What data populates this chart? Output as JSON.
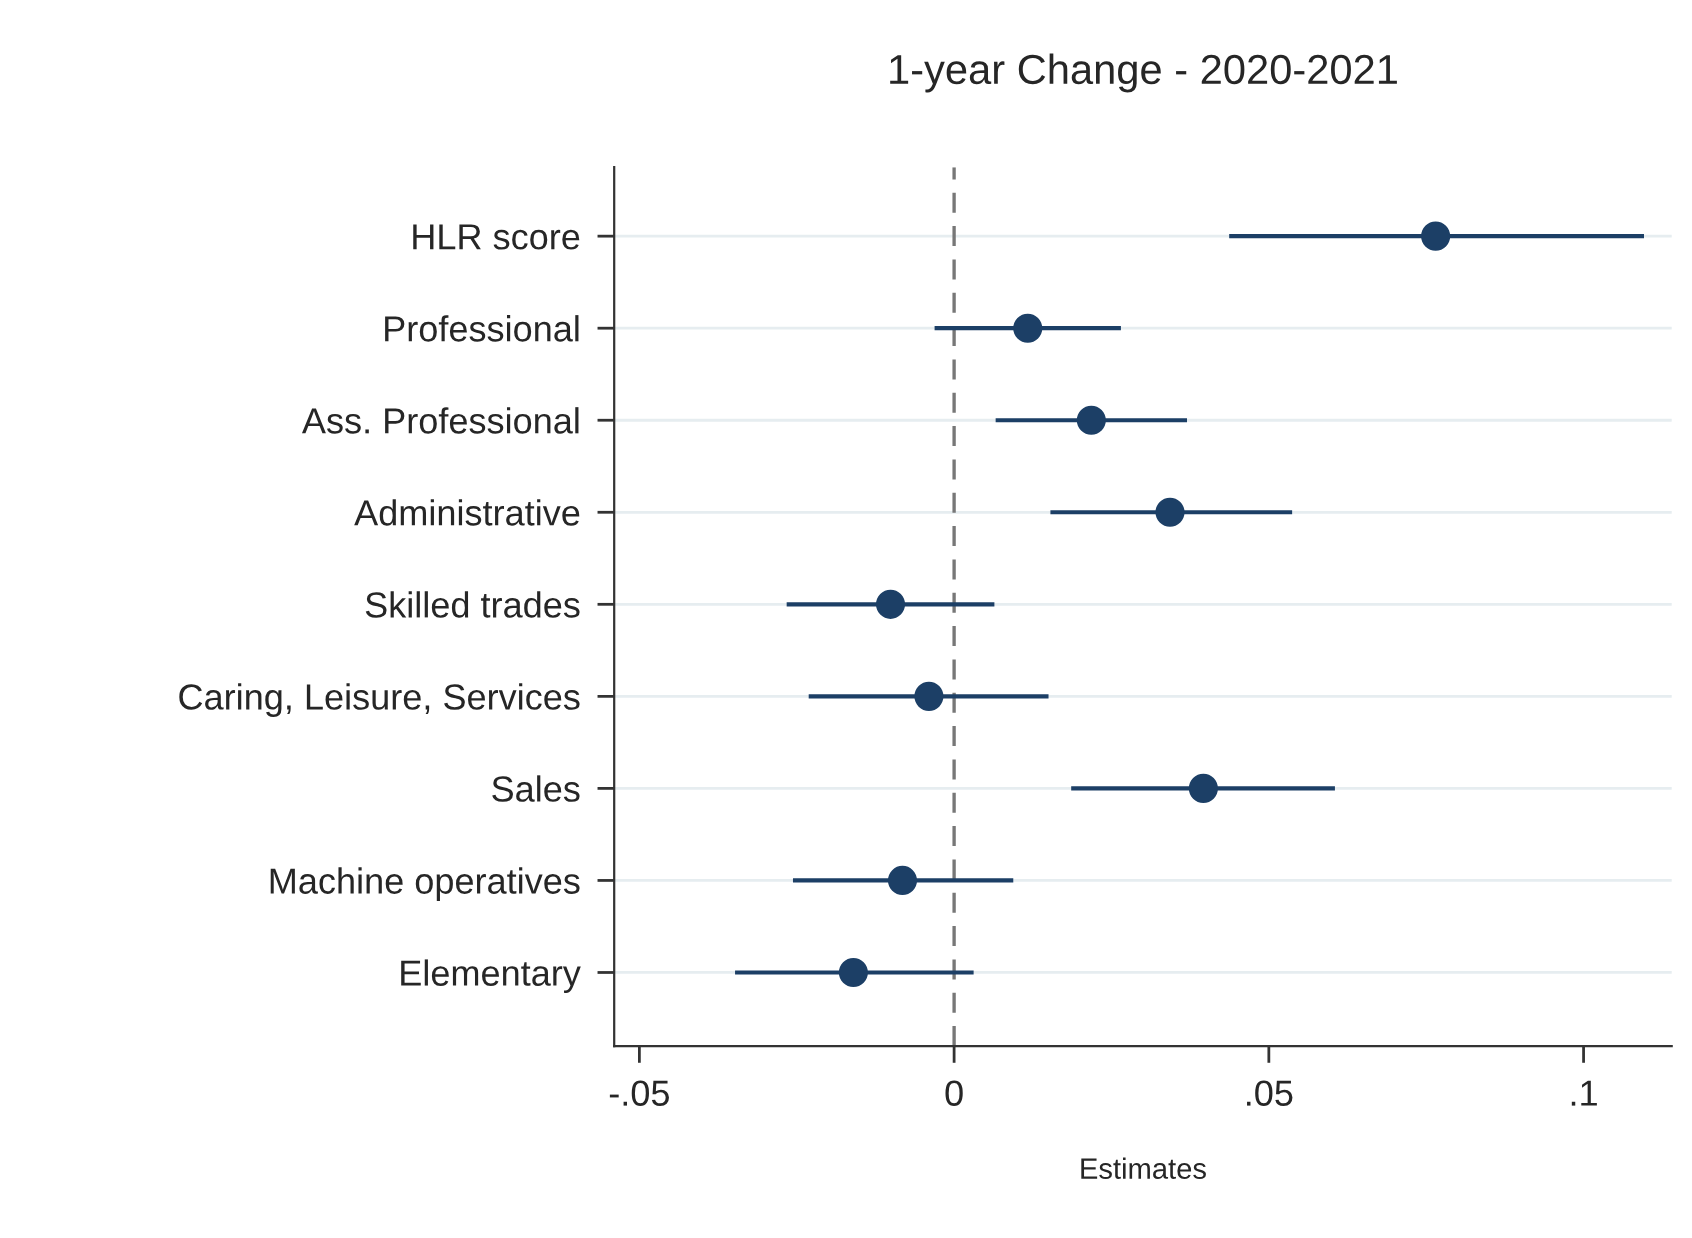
{
  "chart_data": {
    "type": "scatter",
    "orientation": "horizontal",
    "title": "1-year Change - 2020-2021",
    "xlabel": "Estimates",
    "categories": [
      "HLR score",
      "Professional",
      "Ass. Professional",
      "Administrative",
      "Skilled trades",
      "Caring, Leisure, Services",
      "Sales",
      "Machine operatives",
      "Elementary"
    ],
    "values": [
      0.0765,
      0.0117,
      0.0218,
      0.0343,
      -0.0101,
      -0.004,
      0.0396,
      -0.0082,
      -0.016
    ],
    "errors": [
      [
        0.0437,
        0.1096
      ],
      [
        -0.0031,
        0.0265
      ],
      [
        0.0066,
        0.037
      ],
      [
        0.0153,
        0.0537
      ],
      [
        -0.0266,
        0.0064
      ],
      [
        -0.0231,
        0.015
      ],
      [
        0.0186,
        0.0605
      ],
      [
        -0.0256,
        0.0094
      ],
      [
        -0.0348,
        0.0031
      ]
    ],
    "color": "#1c3f66",
    "marker": "circle",
    "xlim": [
      -0.054,
      0.114
    ],
    "xticks": [
      {
        "value": -0.05,
        "label": "-.05"
      },
      0,
      {
        "value": 0.05,
        "label": ".05"
      },
      {
        "value": 0.1,
        "label": ".1"
      }
    ],
    "ref_lines": [
      {
        "axis": "x",
        "value": 0,
        "color": "#777777",
        "line_style": "dashed"
      }
    ],
    "grid": "y"
  }
}
